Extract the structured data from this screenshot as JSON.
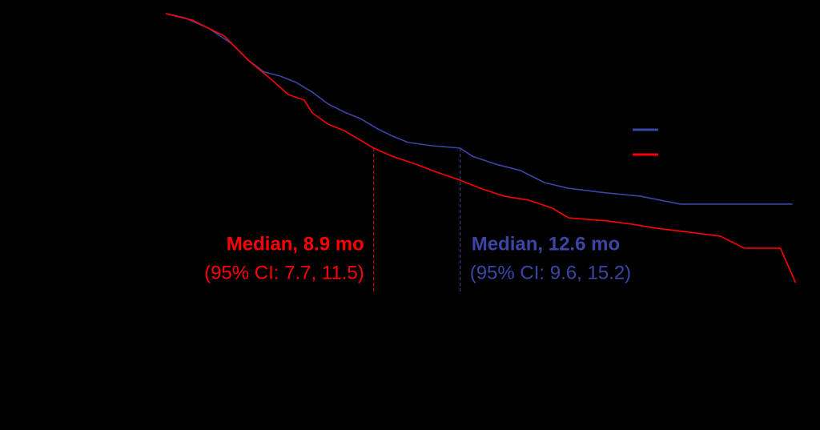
{
  "chart_data": {
    "type": "line",
    "xlim": [
      0,
      27
    ],
    "ylim": [
      0,
      1
    ],
    "series": [
      {
        "color": "#3b45a5",
        "x": [
          0,
          0.79,
          1.82,
          2.84,
          3.53,
          4.21,
          4.9,
          5.58,
          6.27,
          6.95,
          7.64,
          8.32,
          9.01,
          9.69,
          10.38,
          11.4,
          12.6,
          13.12,
          14.14,
          15.17,
          16.2,
          17.23,
          18.6,
          20.31,
          22.02,
          26.82
        ],
        "values": [
          1.0,
          0.985,
          0.946,
          0.887,
          0.827,
          0.783,
          0.768,
          0.744,
          0.708,
          0.664,
          0.634,
          0.61,
          0.574,
          0.545,
          0.521,
          0.509,
          0.5,
          0.47,
          0.44,
          0.417,
          0.372,
          0.351,
          0.336,
          0.321,
          0.292,
          0.292
        ]
      },
      {
        "color": "#ff0000",
        "x": [
          0,
          1.13,
          2.5,
          3.53,
          4.55,
          5.24,
          5.92,
          6.27,
          6.95,
          7.64,
          8.32,
          8.9,
          9.69,
          10.72,
          11.58,
          12.6,
          13.46,
          14.49,
          15.51,
          16.54,
          17.23,
          18.94,
          19.97,
          20.99,
          22.36,
          23.73,
          24.76,
          26.3,
          26.95
        ],
        "values": [
          1.0,
          0.976,
          0.917,
          0.827,
          0.753,
          0.699,
          0.679,
          0.631,
          0.589,
          0.565,
          0.53,
          0.5,
          0.47,
          0.44,
          0.411,
          0.381,
          0.351,
          0.321,
          0.307,
          0.277,
          0.241,
          0.229,
          0.217,
          0.202,
          0.188,
          0.173,
          0.128,
          0.128,
          0
        ]
      }
    ],
    "annotations": [
      {
        "x": 8.9,
        "color": "#ff0000",
        "text": "Median, 8.9 mo",
        "text2": "(95% CI: 7.7, 11.5)"
      },
      {
        "x": 12.6,
        "color": "#3b45a5",
        "text": "Median, 12.6 mo",
        "text2": "(95% CI: 9.6, 15.2)"
      }
    ]
  }
}
